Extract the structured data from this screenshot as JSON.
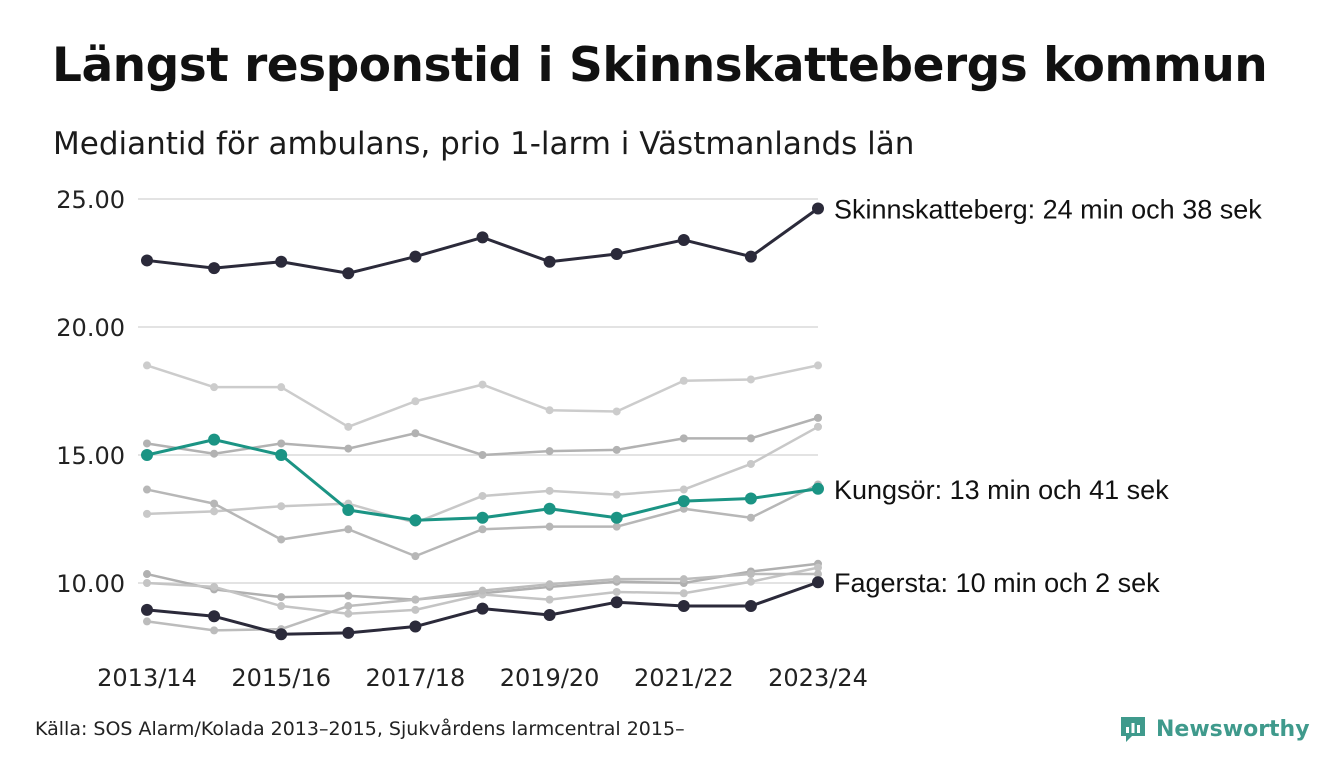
{
  "title": "Längst responstid i Skinnskattebergs kommun",
  "subtitle": "Mediantid för ambulans, prio 1-larm i Västmanlands län",
  "source": "Källa: SOS Alarm/Kolada 2013–2015, Sjukvårdens larmcentral 2015–",
  "logo": {
    "text": "Newsworthy",
    "icon": "newsworthy-logo-icon",
    "color": "#3f9a8c"
  },
  "chart_data": {
    "type": "line",
    "x": [
      "2013/14",
      "2014/15",
      "2015/16",
      "2016/17",
      "2017/18",
      "2018/19",
      "2019/20",
      "2020/21",
      "2021/22",
      "2022/23",
      "2023/24"
    ],
    "x_tick_labels": [
      "2013/14",
      "2015/16",
      "2017/18",
      "2019/20",
      "2021/22",
      "2023/24"
    ],
    "y_tick_labels": [
      "25.00",
      "20.00",
      "15.00",
      "10.00"
    ],
    "ylim": [
      7.5,
      25.5
    ],
    "grid": true,
    "series": [
      {
        "name": "Skinnskatteberg",
        "label": "Skinnskatteberg: 24 min och 38 sek",
        "color": "#2b2a3a",
        "highlight": true,
        "values": [
          22.6,
          22.3,
          22.55,
          22.1,
          22.75,
          23.5,
          22.55,
          22.85,
          23.4,
          22.75,
          24.63
        ]
      },
      {
        "name": "Kungsör",
        "label": "Kungsör: 13 min och 41 sek",
        "color": "#1b9484",
        "highlight": true,
        "values": [
          15.0,
          15.6,
          15.0,
          12.85,
          12.45,
          12.55,
          12.9,
          12.55,
          13.2,
          13.3,
          13.68
        ]
      },
      {
        "name": "Fagersta",
        "label": "Fagersta: 10 min och 2 sek",
        "color": "#2b2a3a",
        "highlight": true,
        "values": [
          8.95,
          8.7,
          8.0,
          8.05,
          8.3,
          9.0,
          8.75,
          9.25,
          9.1,
          9.1,
          10.03
        ]
      },
      {
        "color": "#cccccc",
        "values": [
          18.5,
          17.65,
          17.65,
          16.1,
          17.1,
          17.75,
          16.75,
          16.7,
          17.9,
          17.95,
          18.5
        ]
      },
      {
        "color": "#b2b2b2",
        "values": [
          15.45,
          15.05,
          15.45,
          15.25,
          15.85,
          15.0,
          15.15,
          15.2,
          15.65,
          15.65,
          16.45
        ]
      },
      {
        "color": "#c8c8c8",
        "values": [
          12.7,
          12.8,
          13.0,
          13.1,
          12.35,
          13.4,
          13.6,
          13.45,
          13.65,
          14.65,
          16.1
        ]
      },
      {
        "color": "#b7b7b7",
        "values": [
          13.65,
          13.1,
          11.7,
          12.1,
          11.05,
          12.1,
          12.2,
          12.2,
          12.9,
          12.55,
          13.85
        ]
      },
      {
        "color": "#b0b0b0",
        "values": [
          10.35,
          9.75,
          9.45,
          9.5,
          9.35,
          9.6,
          9.85,
          10.05,
          10.0,
          10.45,
          10.75
        ]
      },
      {
        "color": "#c4c4c4",
        "values": [
          10.0,
          9.85,
          9.1,
          8.8,
          8.95,
          9.55,
          9.35,
          9.65,
          9.6,
          10.05,
          10.6
        ]
      },
      {
        "color": "#bcbcbc",
        "values": [
          8.5,
          8.15,
          8.2,
          9.1,
          9.35,
          9.7,
          9.95,
          10.15,
          10.15,
          10.35,
          10.35
        ]
      }
    ]
  }
}
